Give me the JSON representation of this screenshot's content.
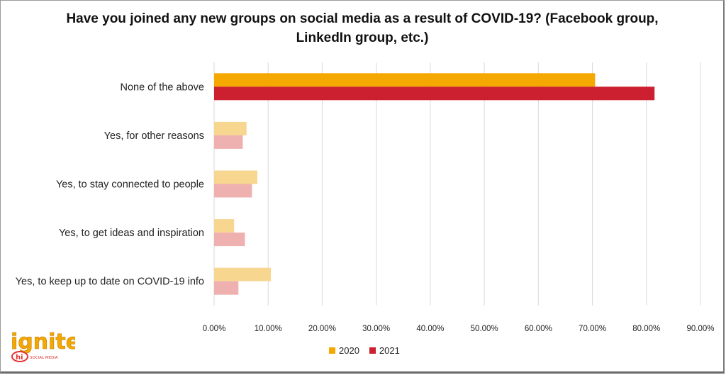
{
  "chart_data": {
    "type": "bar",
    "orientation": "horizontal",
    "title": "Have you joined any new groups on social media as a result of COVID-19? (Facebook group, LinkedIn group, etc.)",
    "categories": [
      "None of the above",
      "Yes, for other reasons",
      "Yes, to stay connected to people",
      "Yes, to get ideas and inspiration",
      "Yes, to keep up to date on COVID-19 info"
    ],
    "series": [
      {
        "name": "2020",
        "values": [
          70.5,
          6.0,
          8.0,
          3.7,
          10.5
        ],
        "color": "#f5a800",
        "muted_color": "#f7d690"
      },
      {
        "name": "2021",
        "values": [
          81.5,
          5.3,
          7.0,
          5.7,
          4.5
        ],
        "color": "#cc1f2f",
        "muted_color": "#efb0b0"
      }
    ],
    "x_ticks": [
      "0.00%",
      "10.00%",
      "20.00%",
      "30.00%",
      "40.00%",
      "50.00%",
      "60.00%",
      "70.00%",
      "80.00%",
      "90.00%"
    ],
    "xlim": [
      0,
      90
    ],
    "xlabel": "",
    "ylabel": "",
    "grid": "vertical",
    "legend_position": "bottom"
  },
  "logo": {
    "text": "ignite",
    "badge": "hi",
    "tagline": "SOCIAL MEDIA",
    "color": "#f5a800"
  }
}
